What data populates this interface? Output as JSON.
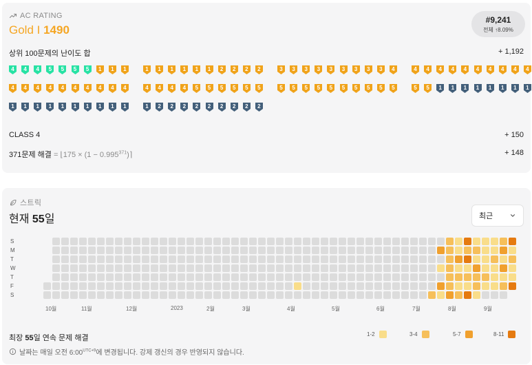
{
  "rating": {
    "section_label": "AC RATING",
    "tier_name": "Gold I",
    "rating_value": "1490",
    "rank": "#9,241",
    "rank_sub_prefix": "전체",
    "rank_sub_arrow": "↑",
    "rank_sub_value": "8.09%",
    "top100_label": "상위 100문제의 난이도 합",
    "top100_value": "+ 1,192",
    "class_label": "CLASS 4",
    "class_value": "+ 150",
    "solved_label": "371문제 해결",
    "solved_formula_prefix": "= ⌊175 × (1 − 0.995",
    "solved_formula_exp": "371",
    "solved_formula_suffix": ")⌉",
    "solved_value": "+ 148",
    "badges": [
      {
        "tier": "platinum",
        "level": "4"
      },
      {
        "tier": "platinum",
        "level": "4"
      },
      {
        "tier": "platinum",
        "level": "4"
      },
      {
        "tier": "platinum",
        "level": "5"
      },
      {
        "tier": "platinum",
        "level": "5"
      },
      {
        "tier": "platinum",
        "level": "5"
      },
      {
        "tier": "platinum",
        "level": "5"
      },
      {
        "tier": "gold",
        "level": "1"
      },
      {
        "tier": "gold",
        "level": "1"
      },
      {
        "tier": "gold",
        "level": "1"
      },
      {
        "tier": "gold",
        "level": "1"
      },
      {
        "tier": "gold",
        "level": "1"
      },
      {
        "tier": "gold",
        "level": "1"
      },
      {
        "tier": "gold",
        "level": "1"
      },
      {
        "tier": "gold",
        "level": "1"
      },
      {
        "tier": "gold",
        "level": "1"
      },
      {
        "tier": "gold",
        "level": "2"
      },
      {
        "tier": "gold",
        "level": "2"
      },
      {
        "tier": "gold",
        "level": "2"
      },
      {
        "tier": "gold",
        "level": "2"
      },
      {
        "tier": "gold",
        "level": "3"
      },
      {
        "tier": "gold",
        "level": "3"
      },
      {
        "tier": "gold",
        "level": "3"
      },
      {
        "tier": "gold",
        "level": "3"
      },
      {
        "tier": "gold",
        "level": "3"
      },
      {
        "tier": "gold",
        "level": "3"
      },
      {
        "tier": "gold",
        "level": "3"
      },
      {
        "tier": "gold",
        "level": "3"
      },
      {
        "tier": "gold",
        "level": "3"
      },
      {
        "tier": "gold",
        "level": "4"
      },
      {
        "tier": "gold",
        "level": "4"
      },
      {
        "tier": "gold",
        "level": "4"
      },
      {
        "tier": "gold",
        "level": "4"
      },
      {
        "tier": "gold",
        "level": "4"
      },
      {
        "tier": "gold",
        "level": "4"
      },
      {
        "tier": "gold",
        "level": "4"
      },
      {
        "tier": "gold",
        "level": "4"
      },
      {
        "tier": "gold",
        "level": "4"
      },
      {
        "tier": "gold",
        "level": "4"
      },
      {
        "tier": "gold",
        "level": "4"
      },
      {
        "tier": "gold",
        "level": "4"
      },
      {
        "tier": "gold",
        "level": "4"
      },
      {
        "tier": "gold",
        "level": "4"
      },
      {
        "tier": "gold",
        "level": "4"
      },
      {
        "tier": "gold",
        "level": "4"
      },
      {
        "tier": "gold",
        "level": "4"
      },
      {
        "tier": "gold",
        "level": "4"
      },
      {
        "tier": "gold",
        "level": "4"
      },
      {
        "tier": "gold",
        "level": "4"
      },
      {
        "tier": "gold",
        "level": "4"
      },
      {
        "tier": "gold",
        "level": "4"
      },
      {
        "tier": "gold",
        "level": "4"
      },
      {
        "tier": "gold",
        "level": "4"
      },
      {
        "tier": "gold",
        "level": "4"
      },
      {
        "tier": "gold",
        "level": "5"
      },
      {
        "tier": "gold",
        "level": "5"
      },
      {
        "tier": "gold",
        "level": "5"
      },
      {
        "tier": "gold",
        "level": "5"
      },
      {
        "tier": "gold",
        "level": "5"
      },
      {
        "tier": "gold",
        "level": "5"
      },
      {
        "tier": "gold",
        "level": "5"
      },
      {
        "tier": "gold",
        "level": "5"
      },
      {
        "tier": "gold",
        "level": "5"
      },
      {
        "tier": "gold",
        "level": "5"
      },
      {
        "tier": "gold",
        "level": "5"
      },
      {
        "tier": "gold",
        "level": "5"
      },
      {
        "tier": "gold",
        "level": "5"
      },
      {
        "tier": "gold",
        "level": "5"
      },
      {
        "tier": "gold",
        "level": "5"
      },
      {
        "tier": "gold",
        "level": "5"
      },
      {
        "tier": "gold",
        "level": "5"
      },
      {
        "tier": "gold",
        "level": "5"
      },
      {
        "tier": "silver",
        "level": "1"
      },
      {
        "tier": "silver",
        "level": "1"
      },
      {
        "tier": "silver",
        "level": "1"
      },
      {
        "tier": "silver",
        "level": "1"
      },
      {
        "tier": "silver",
        "level": "1"
      },
      {
        "tier": "silver",
        "level": "1"
      },
      {
        "tier": "silver",
        "level": "1"
      },
      {
        "tier": "silver",
        "level": "1"
      },
      {
        "tier": "silver",
        "level": "1"
      },
      {
        "tier": "silver",
        "level": "1"
      },
      {
        "tier": "silver",
        "level": "1"
      },
      {
        "tier": "silver",
        "level": "1"
      },
      {
        "tier": "silver",
        "level": "1"
      },
      {
        "tier": "silver",
        "level": "1"
      },
      {
        "tier": "silver",
        "level": "1"
      },
      {
        "tier": "silver",
        "level": "1"
      },
      {
        "tier": "silver",
        "level": "1"
      },
      {
        "tier": "silver",
        "level": "1"
      },
      {
        "tier": "silver",
        "level": "1"
      },
      {
        "tier": "silver",
        "level": "2"
      },
      {
        "tier": "silver",
        "level": "2"
      },
      {
        "tier": "silver",
        "level": "2"
      },
      {
        "tier": "silver",
        "level": "2"
      },
      {
        "tier": "silver",
        "level": "2"
      },
      {
        "tier": "silver",
        "level": "2"
      },
      {
        "tier": "silver",
        "level": "2"
      },
      {
        "tier": "silver",
        "level": "2"
      },
      {
        "tier": "silver",
        "level": "2"
      }
    ]
  },
  "streak": {
    "section_label": "스트릭",
    "current_prefix": "현재",
    "current_value": "55",
    "current_suffix": "일",
    "dropdown_value": "최근",
    "day_labels": [
      "S",
      "M",
      "T",
      "W",
      "T",
      "F",
      "S"
    ],
    "month_labels": [
      "10월",
      "11월",
      "12월",
      "2023",
      "2월",
      "3월",
      "4월",
      "5월",
      "6월",
      "7월",
      "8월",
      "9월"
    ],
    "longest_prefix": "최장",
    "longest_value": "55",
    "longest_suffix": "일 연속 문제 해결",
    "legend": [
      "1-2",
      "3-4",
      "5-7",
      "8-11"
    ],
    "notice_text_a": "날짜는 매일 오전 6:00",
    "notice_sup": "UTC+9",
    "notice_text_b": "에 변경됩니다. 강제 갱신의 경우 반영되지 않습니다.",
    "weeks": 53,
    "first_week_start": 5,
    "last_week_end": 5,
    "month_week_index": [
      0,
      4,
      9,
      14,
      18,
      22,
      27,
      32,
      37,
      41,
      45,
      49
    ],
    "active": [
      [
        46,
        6,
        2
      ],
      [
        47,
        1,
        3
      ],
      [
        47,
        3,
        1
      ],
      [
        47,
        5,
        3
      ],
      [
        47,
        6,
        1
      ],
      [
        48,
        0,
        2
      ],
      [
        48,
        1,
        2
      ],
      [
        48,
        2,
        2
      ],
      [
        48,
        3,
        2
      ],
      [
        48,
        4,
        2
      ],
      [
        48,
        5,
        2
      ],
      [
        48,
        6,
        3
      ],
      [
        49,
        0,
        1
      ],
      [
        49,
        1,
        1
      ],
      [
        49,
        2,
        3
      ],
      [
        49,
        3,
        1
      ],
      [
        49,
        4,
        2
      ],
      [
        49,
        5,
        1
      ],
      [
        49,
        6,
        2
      ],
      [
        50,
        0,
        4
      ],
      [
        50,
        1,
        2
      ],
      [
        50,
        2,
        4
      ],
      [
        50,
        3,
        1
      ],
      [
        50,
        4,
        2
      ],
      [
        50,
        5,
        1
      ],
      [
        50,
        6,
        4
      ],
      [
        51,
        0,
        1
      ],
      [
        51,
        1,
        2
      ],
      [
        51,
        2,
        1
      ],
      [
        51,
        3,
        3
      ],
      [
        51,
        4,
        2
      ],
      [
        51,
        5,
        2
      ],
      [
        51,
        6,
        1
      ],
      [
        52,
        0,
        1
      ],
      [
        52,
        1,
        1
      ],
      [
        52,
        2,
        1
      ],
      [
        52,
        3,
        1
      ],
      [
        52,
        4,
        2
      ],
      [
        52,
        5,
        1
      ],
      [
        53,
        0,
        1
      ],
      [
        53,
        1,
        1
      ],
      [
        53,
        2,
        2
      ],
      [
        53,
        3,
        1
      ],
      [
        53,
        4,
        1
      ],
      [
        53,
        5,
        1
      ],
      [
        54,
        0,
        2
      ],
      [
        54,
        1,
        3
      ],
      [
        54,
        2,
        1
      ],
      [
        54,
        3,
        3
      ],
      [
        54,
        4,
        1
      ],
      [
        54,
        5,
        2
      ],
      [
        55,
        0,
        4
      ],
      [
        55,
        1,
        1
      ],
      [
        55,
        2,
        2
      ],
      [
        55,
        3,
        1
      ],
      [
        55,
        4,
        1
      ],
      [
        55,
        5,
        4
      ],
      [
        31,
        5,
        1
      ]
    ]
  },
  "colors": {
    "platinum": "#27e2a4",
    "gold": "#f0a31a",
    "silver": "#435f7a",
    "empty": "#dcdcdc",
    "level_1": "#f9dd8a",
    "level_2": "#f6bf5a",
    "level_3": "#f0a02e",
    "level_4": "#e57a10",
    "accent": "#f5a623"
  },
  "icons": {
    "rating_icon": "trending-up-icon",
    "streak_icon": "leaf-icon",
    "dropdown_icon": "chevron-down-icon",
    "notice_icon": "info-icon"
  }
}
